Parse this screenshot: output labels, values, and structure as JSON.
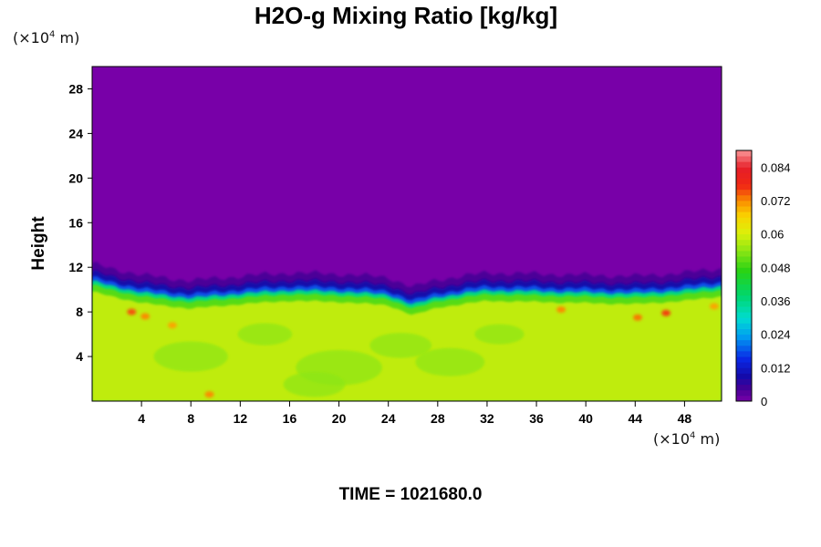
{
  "chart_data": {
    "type": "heatmap",
    "title": "H2O-g Mixing Ratio [kg/kg]",
    "ylabel": "Height",
    "xlabel": "",
    "x_unit_label": "(×10",
    "x_unit_exp": "4",
    "x_unit_suffix": " m)",
    "y_unit_label": "(×10",
    "y_unit_exp": "4",
    "y_unit_suffix": " m)",
    "xlim": [
      0,
      51
    ],
    "ylim": [
      0,
      30
    ],
    "x_ticks": [
      4,
      8,
      12,
      16,
      20,
      24,
      28,
      32,
      36,
      40,
      44,
      48
    ],
    "y_ticks": [
      4,
      8,
      12,
      16,
      20,
      24,
      28
    ],
    "x_tick_labels": [
      "4",
      "8",
      "12",
      "16",
      "20",
      "24",
      "28",
      "32",
      "36",
      "40",
      "44",
      "48"
    ],
    "y_tick_labels": [
      "4",
      "8",
      "12",
      "16",
      "20",
      "24",
      "28"
    ],
    "colorbar": {
      "min": 0,
      "max": 0.09,
      "ticks": [
        0,
        0.012,
        0.024,
        0.036,
        0.048,
        0.06,
        0.072,
        0.084
      ],
      "tick_labels": [
        "0",
        "0.012",
        "0.024",
        "0.036",
        "0.048",
        "0.06",
        "0.072",
        "0.084"
      ],
      "colormap": "rainbow"
    },
    "field": {
      "upper_layer_value": 0,
      "lower_layer_value": 0.058,
      "transition_height_profile": {
        "x": [
          0,
          4,
          8,
          12,
          16,
          20,
          24,
          26,
          28,
          32,
          36,
          40,
          44,
          48,
          51
        ],
        "height": [
          10.4,
          9.4,
          8.9,
          9.3,
          9.6,
          9.5,
          9.2,
          8.3,
          9.0,
          9.6,
          9.5,
          9.4,
          9.3,
          9.6,
          10.0
        ]
      },
      "moist_spots": [
        {
          "x": 3.2,
          "y": 8.0,
          "value": 0.075
        },
        {
          "x": 4.3,
          "y": 7.6,
          "value": 0.072
        },
        {
          "x": 38.0,
          "y": 8.2,
          "value": 0.072
        },
        {
          "x": 44.2,
          "y": 7.5,
          "value": 0.073
        },
        {
          "x": 46.5,
          "y": 7.9,
          "value": 0.076
        },
        {
          "x": 50.4,
          "y": 8.5,
          "value": 0.07
        },
        {
          "x": 9.5,
          "y": 0.6,
          "value": 0.072
        },
        {
          "x": 6.5,
          "y": 6.8,
          "value": 0.07
        }
      ]
    }
  },
  "footer": {
    "time_label": "TIME = 1021680.0"
  },
  "colors": {
    "upper_layer": "#7800a8",
    "lower_layer": "#dcf20c",
    "transition": "#1010d8"
  }
}
